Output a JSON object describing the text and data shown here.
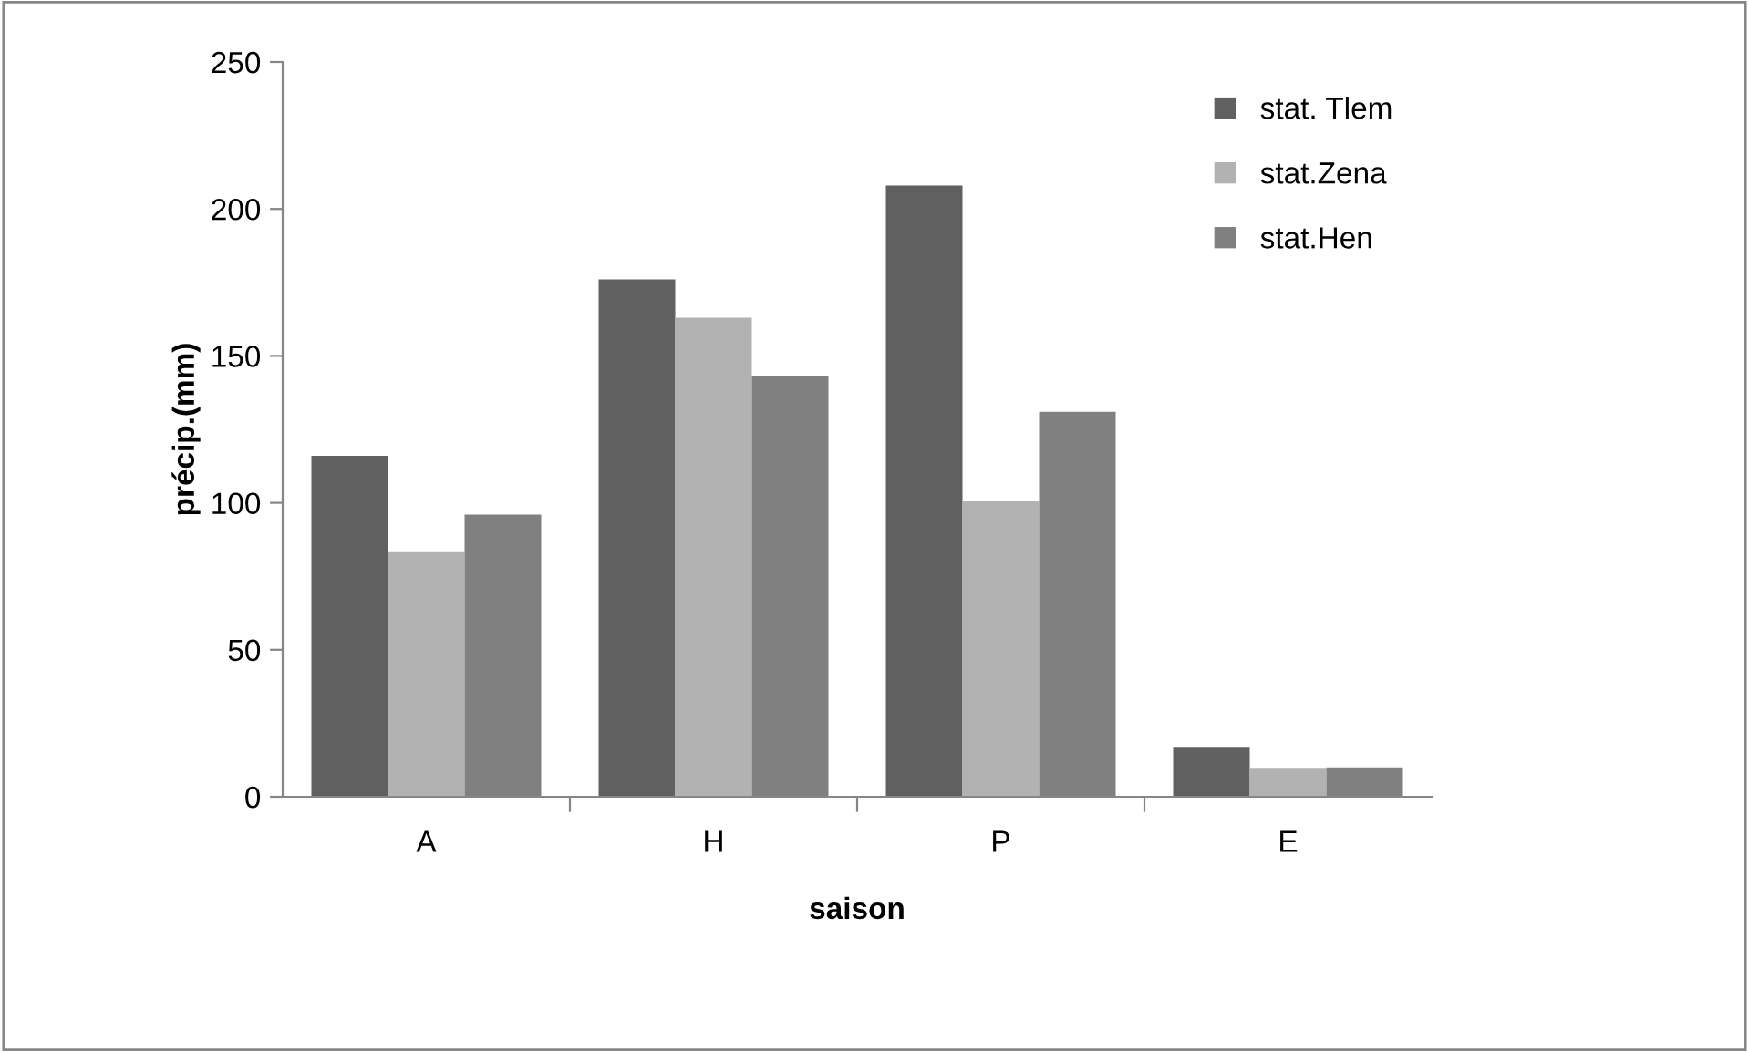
{
  "chart_data": {
    "type": "bar",
    "xlabel": "saison",
    "ylabel": "précip.(mm)",
    "categories": [
      "A",
      "H",
      "P",
      "E"
    ],
    "series": [
      {
        "name": "stat. Tlem",
        "color": "#606060",
        "values": [
          116,
          176,
          208,
          17
        ]
      },
      {
        "name": "stat.Zena",
        "color": "#b2b2b2",
        "values": [
          83.5,
          163,
          100.5,
          9.5
        ]
      },
      {
        "name": "stat.Hen",
        "color": "#808080",
        "values": [
          96,
          143,
          131,
          10
        ]
      }
    ],
    "ylim": [
      0,
      250
    ],
    "yticks": [
      0,
      50,
      100,
      150,
      200,
      250
    ],
    "grid": false,
    "legend": "top right"
  }
}
